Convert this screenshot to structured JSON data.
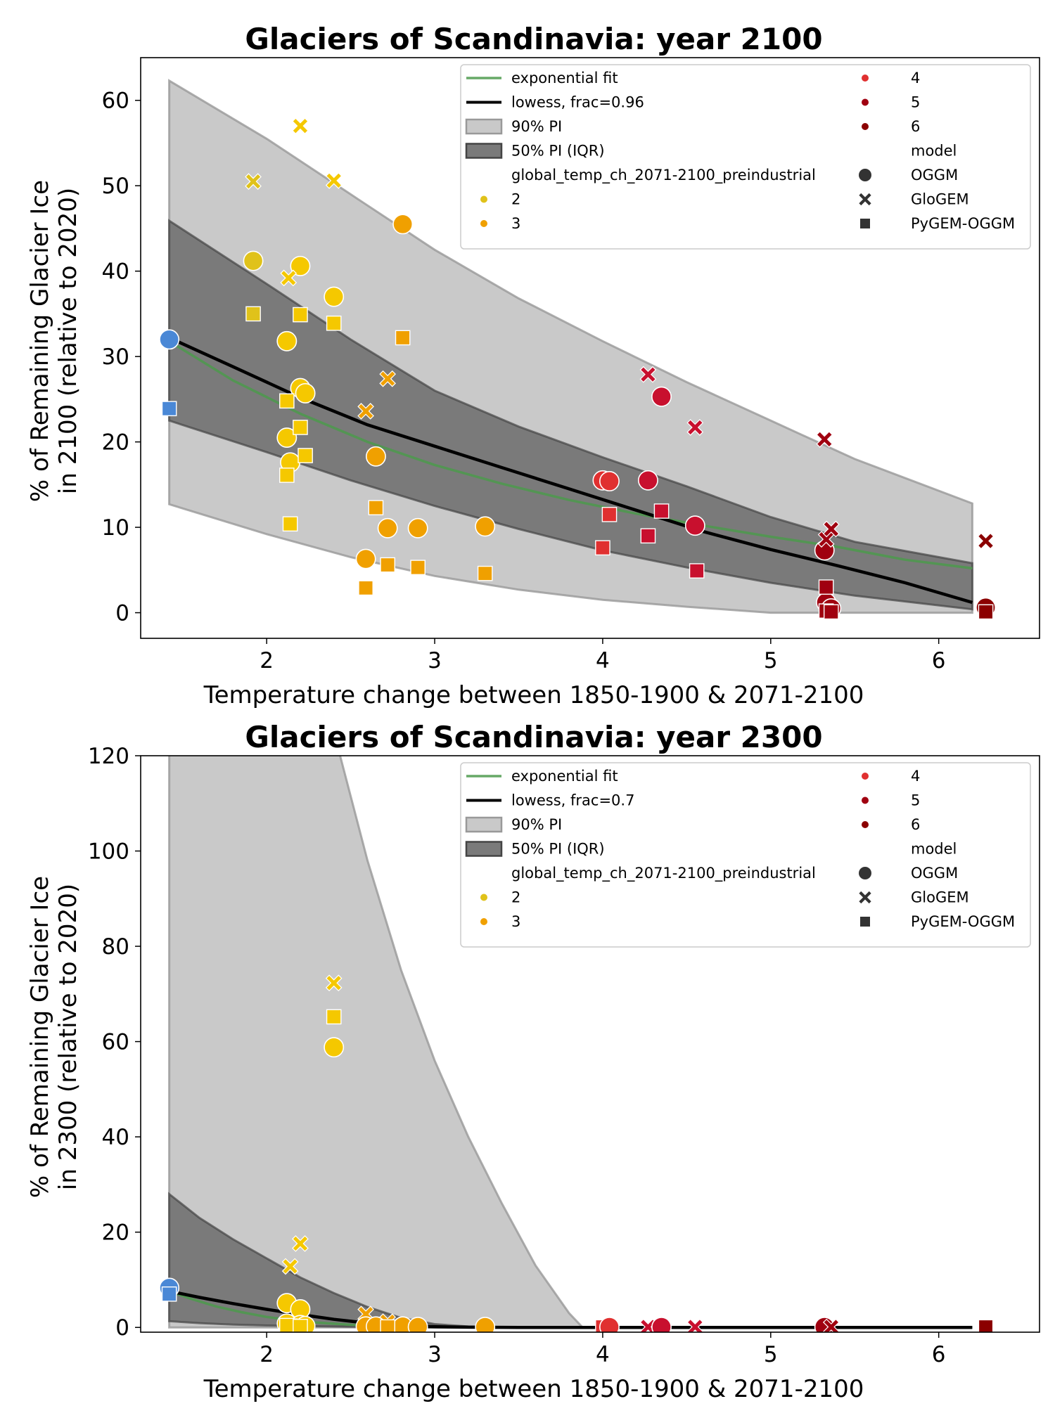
{
  "colors": {
    "fit": "#4c9a4c",
    "lowess": "#000000",
    "pi90": "#c9c9c9",
    "pi50": "#7a7a7a",
    "temp_1_5": "#4a88d6",
    "temp_2": "#e0c21a",
    "temp_2_yellow": "#f5c800",
    "temp_3": "#f0a000",
    "temp_4": "#e03030",
    "temp_4b": "#c8102e",
    "temp_5": "#a00010",
    "temp_6": "#8b0000"
  },
  "legend": {
    "fit": "exponential fit",
    "pi90": "90% PI",
    "pi50": "50% PI (IQR)",
    "hue_title": "global_temp_ch_2071-2100_preindustrial",
    "hue": [
      "2",
      "3",
      "4",
      "5",
      "6"
    ],
    "style_title": "model",
    "models": [
      "OGGM",
      "GloGEM",
      "PyGEM-OGGM"
    ]
  },
  "chart_data": [
    {
      "type": "scatter",
      "title": "Glaciers of Scandinavia:  year 2100",
      "xlabel": "Temperature change between 1850-1900 & 2071-2100",
      "ylabel": [
        "% of Remaining Glacier Ice",
        "in 2100 (relative to 2020)"
      ],
      "lowess_label": "lowess, frac=0.96",
      "xlim": [
        1.25,
        6.6
      ],
      "ylim": [
        -3,
        65
      ],
      "xticks": [
        2,
        3,
        4,
        5,
        6
      ],
      "yticks": [
        0,
        10,
        20,
        30,
        40,
        50,
        60
      ],
      "legend_position": "top-right",
      "grid": false,
      "pi90_x": [
        1.42,
        2.0,
        2.5,
        3.0,
        3.5,
        4.0,
        4.5,
        5.0,
        5.5,
        6.2
      ],
      "pi90_upper": [
        62.3,
        55.5,
        49,
        42.5,
        36.8,
        31.8,
        27,
        22.5,
        18,
        12.8
      ],
      "pi90_lower": [
        12.7,
        9.2,
        6.5,
        4.3,
        2.7,
        1.5,
        0.7,
        0,
        0,
        0
      ],
      "pi50_upper": [
        45.9,
        38.5,
        32,
        26,
        21.8,
        18.2,
        14.8,
        11.2,
        8.3,
        5.8
      ],
      "pi50_lower": [
        22.5,
        18.8,
        15.5,
        12.5,
        9.8,
        7.3,
        5.3,
        3.5,
        2.0,
        0.4
      ],
      "lowess_x": [
        1.42,
        1.8,
        2.2,
        2.6,
        3.0,
        3.4,
        3.8,
        4.2,
        4.6,
        5.0,
        5.4,
        5.8,
        6.2
      ],
      "lowess_y": [
        32.2,
        28.8,
        25.2,
        22,
        19.5,
        17,
        14.5,
        12,
        9.5,
        7.4,
        5.5,
        3.5,
        1.2
      ],
      "fit_x": [
        1.42,
        1.8,
        2.2,
        2.6,
        3.0,
        3.4,
        3.8,
        4.2,
        4.6,
        5.0,
        5.4,
        5.8,
        6.2
      ],
      "fit_y": [
        31.8,
        27.2,
        23.3,
        20,
        17.3,
        15.1,
        13.2,
        11.6,
        10.2,
        8.9,
        7.7,
        6.2,
        5.2
      ],
      "points": [
        {
          "x": 1.42,
          "y": 32.0,
          "m": "o",
          "c": "temp_1_5"
        },
        {
          "x": 1.42,
          "y": 23.9,
          "m": "s",
          "c": "temp_1_5"
        },
        {
          "x": 1.92,
          "y": 41.2,
          "m": "o",
          "c": "temp_2"
        },
        {
          "x": 1.92,
          "y": 50.5,
          "m": "x",
          "c": "temp_2"
        },
        {
          "x": 1.92,
          "y": 35.0,
          "m": "s",
          "c": "temp_2"
        },
        {
          "x": 2.12,
          "y": 31.8,
          "m": "o",
          "c": "temp_2_yellow"
        },
        {
          "x": 2.12,
          "y": 20.5,
          "m": "o",
          "c": "temp_2_yellow"
        },
        {
          "x": 2.14,
          "y": 17.6,
          "m": "o",
          "c": "temp_2_yellow"
        },
        {
          "x": 2.2,
          "y": 40.6,
          "m": "o",
          "c": "temp_2_yellow"
        },
        {
          "x": 2.2,
          "y": 26.3,
          "m": "o",
          "c": "temp_2_yellow"
        },
        {
          "x": 2.23,
          "y": 25.7,
          "m": "o",
          "c": "temp_2_yellow"
        },
        {
          "x": 2.4,
          "y": 37.0,
          "m": "o",
          "c": "temp_2_yellow"
        },
        {
          "x": 2.2,
          "y": 57.0,
          "m": "x",
          "c": "temp_2_yellow"
        },
        {
          "x": 2.13,
          "y": 39.2,
          "m": "x",
          "c": "temp_2_yellow"
        },
        {
          "x": 2.4,
          "y": 50.6,
          "m": "x",
          "c": "temp_2_yellow"
        },
        {
          "x": 2.2,
          "y": 34.9,
          "m": "s",
          "c": "temp_2_yellow"
        },
        {
          "x": 2.4,
          "y": 33.9,
          "m": "s",
          "c": "temp_2_yellow"
        },
        {
          "x": 2.12,
          "y": 24.8,
          "m": "s",
          "c": "temp_2_yellow"
        },
        {
          "x": 2.2,
          "y": 21.7,
          "m": "s",
          "c": "temp_2_yellow"
        },
        {
          "x": 2.23,
          "y": 18.4,
          "m": "s",
          "c": "temp_2_yellow"
        },
        {
          "x": 2.12,
          "y": 16.1,
          "m": "s",
          "c": "temp_2_yellow"
        },
        {
          "x": 2.14,
          "y": 10.4,
          "m": "s",
          "c": "temp_2_yellow"
        },
        {
          "x": 2.81,
          "y": 45.5,
          "m": "o",
          "c": "temp_3"
        },
        {
          "x": 2.65,
          "y": 18.3,
          "m": "o",
          "c": "temp_3"
        },
        {
          "x": 2.72,
          "y": 9.9,
          "m": "o",
          "c": "temp_3"
        },
        {
          "x": 2.9,
          "y": 9.9,
          "m": "o",
          "c": "temp_3"
        },
        {
          "x": 3.3,
          "y": 10.1,
          "m": "o",
          "c": "temp_3"
        },
        {
          "x": 2.59,
          "y": 6.3,
          "m": "o",
          "c": "temp_3"
        },
        {
          "x": 2.72,
          "y": 27.4,
          "m": "x",
          "c": "temp_3"
        },
        {
          "x": 2.59,
          "y": 23.6,
          "m": "x",
          "c": "temp_3"
        },
        {
          "x": 2.81,
          "y": 32.2,
          "m": "s",
          "c": "temp_3"
        },
        {
          "x": 2.65,
          "y": 12.3,
          "m": "s",
          "c": "temp_3"
        },
        {
          "x": 2.72,
          "y": 5.6,
          "m": "s",
          "c": "temp_3"
        },
        {
          "x": 2.9,
          "y": 5.3,
          "m": "s",
          "c": "temp_3"
        },
        {
          "x": 3.3,
          "y": 4.6,
          "m": "s",
          "c": "temp_3"
        },
        {
          "x": 2.59,
          "y": 2.9,
          "m": "s",
          "c": "temp_3"
        },
        {
          "x": 4.0,
          "y": 15.5,
          "m": "o",
          "c": "temp_4"
        },
        {
          "x": 4.04,
          "y": 15.4,
          "m": "o",
          "c": "temp_4"
        },
        {
          "x": 4.27,
          "y": 15.5,
          "m": "o",
          "c": "temp_4b"
        },
        {
          "x": 4.35,
          "y": 25.3,
          "m": "o",
          "c": "temp_4b"
        },
        {
          "x": 4.55,
          "y": 10.2,
          "m": "o",
          "c": "temp_4b"
        },
        {
          "x": 4.27,
          "y": 27.9,
          "m": "x",
          "c": "temp_4b"
        },
        {
          "x": 4.55,
          "y": 21.7,
          "m": "x",
          "c": "temp_4b"
        },
        {
          "x": 4.0,
          "y": 7.6,
          "m": "s",
          "c": "temp_4"
        },
        {
          "x": 4.04,
          "y": 11.5,
          "m": "s",
          "c": "temp_4"
        },
        {
          "x": 4.27,
          "y": 9.0,
          "m": "s",
          "c": "temp_4b"
        },
        {
          "x": 4.35,
          "y": 11.9,
          "m": "s",
          "c": "temp_4b"
        },
        {
          "x": 4.56,
          "y": 4.9,
          "m": "s",
          "c": "temp_4b"
        },
        {
          "x": 5.32,
          "y": 7.3,
          "m": "o",
          "c": "temp_5"
        },
        {
          "x": 5.33,
          "y": 1.2,
          "m": "o",
          "c": "temp_5"
        },
        {
          "x": 5.36,
          "y": 0.5,
          "m": "o",
          "c": "temp_5"
        },
        {
          "x": 5.32,
          "y": 20.3,
          "m": "x",
          "c": "temp_5"
        },
        {
          "x": 5.33,
          "y": 8.6,
          "m": "x",
          "c": "temp_5"
        },
        {
          "x": 5.36,
          "y": 9.8,
          "m": "x",
          "c": "temp_5"
        },
        {
          "x": 5.33,
          "y": 3.0,
          "m": "s",
          "c": "temp_5"
        },
        {
          "x": 5.33,
          "y": 0.2,
          "m": "s",
          "c": "temp_5"
        },
        {
          "x": 5.36,
          "y": 0.1,
          "m": "s",
          "c": "temp_5"
        },
        {
          "x": 6.28,
          "y": 0.6,
          "m": "o",
          "c": "temp_6"
        },
        {
          "x": 6.28,
          "y": 8.4,
          "m": "x",
          "c": "temp_6"
        },
        {
          "x": 6.28,
          "y": 0.1,
          "m": "s",
          "c": "temp_6"
        }
      ]
    },
    {
      "type": "scatter",
      "title": "Glaciers of Scandinavia:  year 2300",
      "xlabel": "Temperature change between 1850-1900 & 2071-2100",
      "ylabel": [
        "% of Remaining Glacier Ice",
        "in 2300 (relative to 2020)"
      ],
      "lowess_label": "lowess, frac=0.7",
      "xlim": [
        1.25,
        6.6
      ],
      "ylim": [
        -1,
        120
      ],
      "xticks": [
        2,
        3,
        4,
        5,
        6
      ],
      "yticks": [
        0,
        20,
        40,
        60,
        80,
        100,
        120
      ],
      "legend_position": "top-right",
      "grid": false,
      "pi90_x": [
        1.42,
        1.8,
        2.0,
        2.2,
        2.4,
        2.6,
        2.8,
        3.0,
        3.2,
        3.4,
        3.6,
        3.8,
        3.88,
        4.5,
        5.5,
        6.2
      ],
      "pi90_upper": [
        400,
        300,
        230,
        170,
        125,
        98,
        75,
        56,
        40,
        26,
        13,
        3,
        0,
        0,
        0,
        0
      ],
      "pi90_lower": [
        0,
        0,
        0,
        0,
        0,
        0,
        0,
        0,
        0,
        0,
        0,
        0,
        0,
        0,
        0,
        0
      ],
      "pi50_x": [
        1.42,
        1.6,
        1.8,
        2.0,
        2.2,
        2.4,
        2.6,
        2.8,
        3.0,
        3.2,
        3.5,
        4.0,
        5.0,
        6.2
      ],
      "pi50_upper": [
        28,
        23,
        18.5,
        14.5,
        10.5,
        7.2,
        4.3,
        2,
        0.7,
        0.2,
        0,
        0,
        0,
        0
      ],
      "pi50_lower": [
        1.3,
        0.9,
        0.6,
        0.4,
        0.3,
        0.2,
        0.1,
        0,
        0,
        0,
        0,
        0,
        0,
        0
      ],
      "lowess_x": [
        1.42,
        1.6,
        1.8,
        2.0,
        2.2,
        2.4,
        2.6,
        2.8,
        3.0,
        3.2,
        3.5,
        4.0,
        5.0,
        6.2
      ],
      "lowess_y": [
        7.6,
        6.3,
        5.0,
        3.8,
        2.7,
        1.7,
        0.9,
        0.4,
        0.15,
        0.05,
        0,
        0,
        0,
        0
      ],
      "fit_x": [
        1.42,
        1.55,
        1.7,
        1.85,
        2.0,
        2.15,
        2.3,
        2.5,
        2.7,
        3.0,
        3.3,
        4.0,
        5.0,
        6.2
      ],
      "fit_y": [
        7.6,
        6.0,
        4.4,
        3.2,
        2.2,
        1.5,
        1.0,
        0.55,
        0.3,
        0.1,
        0.03,
        0,
        0,
        0
      ],
      "points": [
        {
          "x": 1.42,
          "y": 8.3,
          "m": "o",
          "c": "temp_1_5"
        },
        {
          "x": 1.42,
          "y": 7.0,
          "m": "s",
          "c": "temp_1_5"
        },
        {
          "x": 2.4,
          "y": 72.3,
          "m": "x",
          "c": "temp_2_yellow"
        },
        {
          "x": 2.4,
          "y": 65.2,
          "m": "s",
          "c": "temp_2_yellow"
        },
        {
          "x": 2.4,
          "y": 58.8,
          "m": "o",
          "c": "temp_2_yellow"
        },
        {
          "x": 2.2,
          "y": 17.6,
          "m": "x",
          "c": "temp_2_yellow"
        },
        {
          "x": 2.14,
          "y": 12.8,
          "m": "x",
          "c": "temp_2_yellow"
        },
        {
          "x": 2.12,
          "y": 5.1,
          "m": "o",
          "c": "temp_2_yellow"
        },
        {
          "x": 2.2,
          "y": 3.8,
          "m": "o",
          "c": "temp_2_yellow"
        },
        {
          "x": 2.12,
          "y": 0.8,
          "m": "o",
          "c": "temp_2_yellow"
        },
        {
          "x": 2.2,
          "y": 0.5,
          "m": "o",
          "c": "temp_2_yellow"
        },
        {
          "x": 2.23,
          "y": 0.3,
          "m": "o",
          "c": "temp_2_yellow"
        },
        {
          "x": 2.14,
          "y": 0.3,
          "m": "s",
          "c": "temp_2_yellow"
        },
        {
          "x": 2.12,
          "y": 0.4,
          "m": "s",
          "c": "temp_2_yellow"
        },
        {
          "x": 2.2,
          "y": 0.2,
          "m": "s",
          "c": "temp_2_yellow"
        },
        {
          "x": 2.59,
          "y": 2.8,
          "m": "x",
          "c": "temp_3"
        },
        {
          "x": 2.72,
          "y": 1.2,
          "m": "x",
          "c": "temp_3"
        },
        {
          "x": 2.59,
          "y": 0.2,
          "m": "o",
          "c": "temp_3"
        },
        {
          "x": 2.65,
          "y": 0.2,
          "m": "o",
          "c": "temp_3"
        },
        {
          "x": 2.81,
          "y": 0.2,
          "m": "o",
          "c": "temp_3"
        },
        {
          "x": 2.9,
          "y": 0.1,
          "m": "o",
          "c": "temp_3"
        },
        {
          "x": 3.3,
          "y": 0.1,
          "m": "o",
          "c": "temp_3"
        },
        {
          "x": 2.72,
          "y": 0.1,
          "m": "s",
          "c": "temp_3"
        },
        {
          "x": 4.0,
          "y": 0.1,
          "m": "s",
          "c": "temp_4"
        },
        {
          "x": 4.04,
          "y": 0.1,
          "m": "o",
          "c": "temp_4"
        },
        {
          "x": 4.27,
          "y": 0.1,
          "m": "x",
          "c": "temp_4b"
        },
        {
          "x": 4.35,
          "y": 0.1,
          "m": "o",
          "c": "temp_4b"
        },
        {
          "x": 4.55,
          "y": 0.1,
          "m": "x",
          "c": "temp_4b"
        },
        {
          "x": 5.32,
          "y": 0.1,
          "m": "o",
          "c": "temp_5"
        },
        {
          "x": 5.36,
          "y": 0.1,
          "m": "x",
          "c": "temp_5"
        },
        {
          "x": 6.28,
          "y": 0.1,
          "m": "s",
          "c": "temp_6"
        }
      ]
    }
  ]
}
